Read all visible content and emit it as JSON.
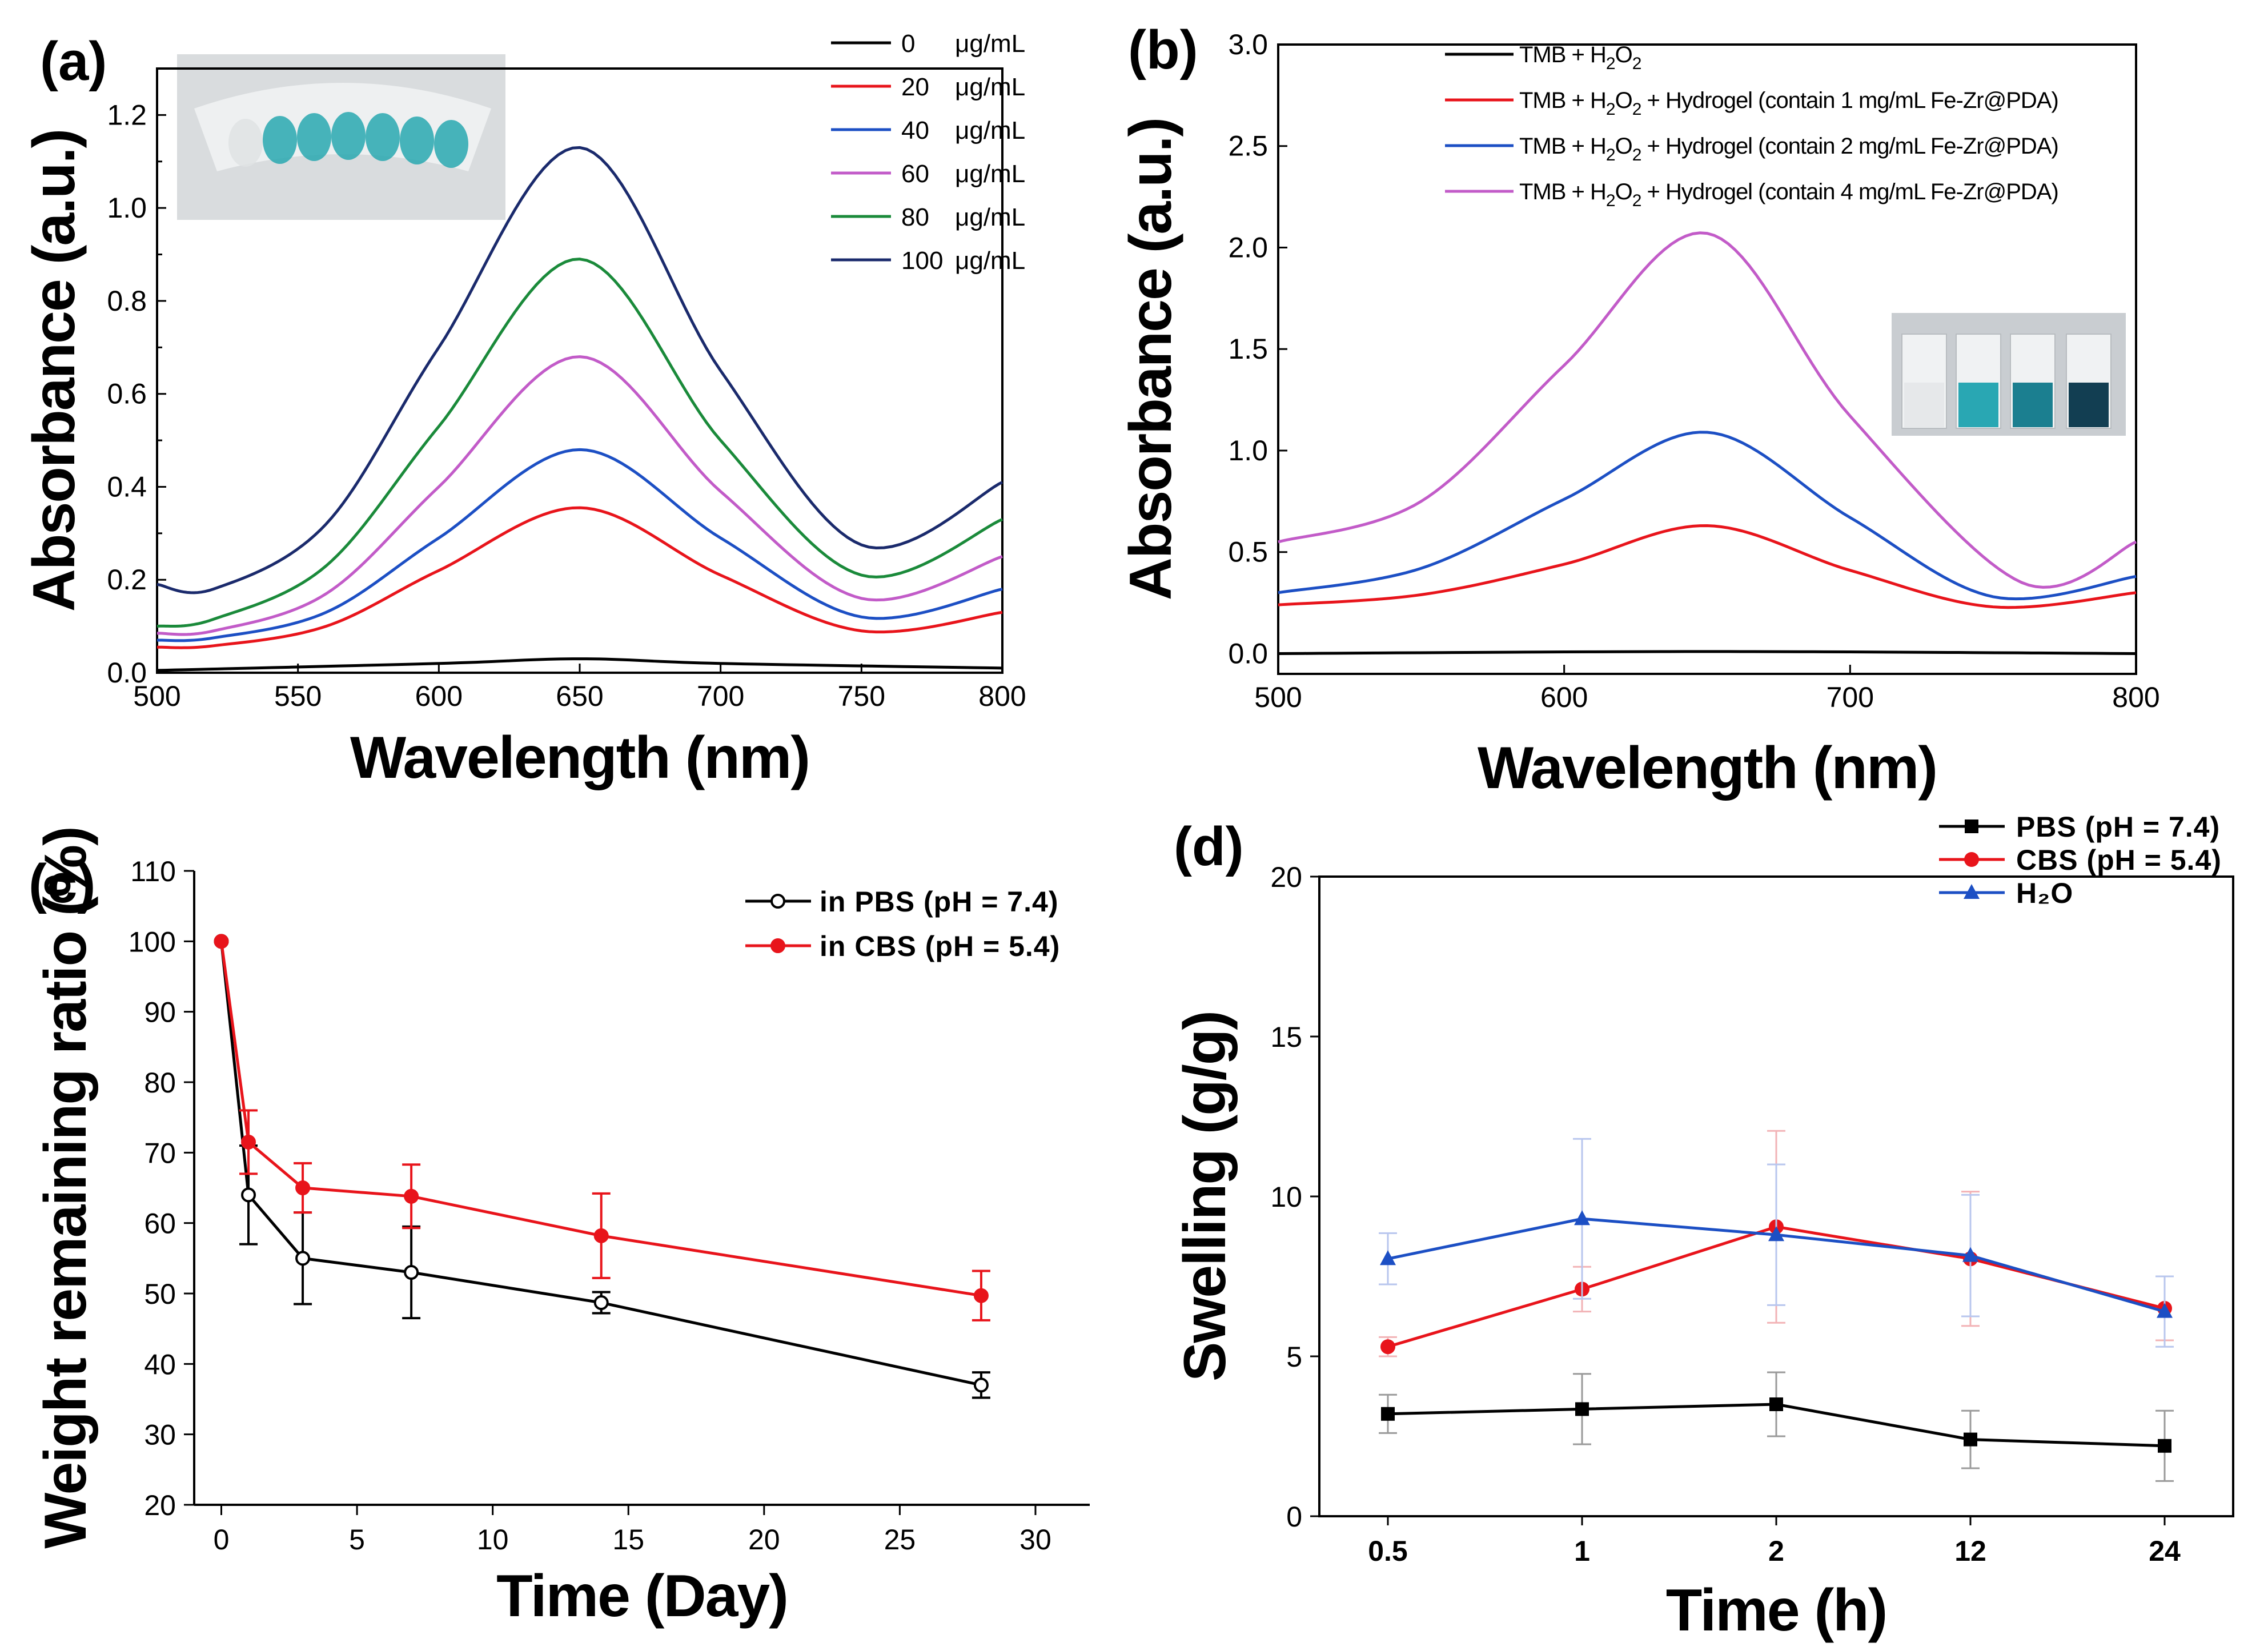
{
  "chart_data": [
    {
      "id": "a",
      "panel_label": "(a)",
      "type": "line",
      "xlabel": "Wavelength (nm)",
      "ylabel": "Absorbance (a.u.)",
      "xlim": [
        500,
        800
      ],
      "ylim": [
        0,
        1.3
      ],
      "xticks": [
        "500",
        "550",
        "600",
        "650",
        "700",
        "750",
        "800"
      ],
      "yticks": [
        "0.0",
        "0.2",
        "0.4",
        "0.6",
        "0.8",
        "1.0",
        "1.2"
      ],
      "legend_position": "top-right",
      "inset": "photo of tubes with blue solutions",
      "series": [
        {
          "name_value": "0",
          "name_unit": "μg/mL",
          "color": "#000000",
          "x": [
            500,
            600,
            650,
            700,
            800
          ],
          "y": [
            0.005,
            0.02,
            0.03,
            0.02,
            0.01
          ]
        },
        {
          "name_value": "20",
          "name_unit": "μg/mL",
          "color": "#e8141b",
          "x": [
            500,
            520,
            560,
            600,
            650,
            700,
            750,
            800
          ],
          "y": [
            0.055,
            0.058,
            0.1,
            0.22,
            0.355,
            0.21,
            0.09,
            0.13
          ]
        },
        {
          "name_value": "40",
          "name_unit": "μg/mL",
          "color": "#1c4fc4",
          "x": [
            500,
            520,
            560,
            600,
            650,
            700,
            750,
            800
          ],
          "y": [
            0.07,
            0.075,
            0.13,
            0.29,
            0.48,
            0.29,
            0.12,
            0.18
          ]
        },
        {
          "name_value": "60",
          "name_unit": "μg/mL",
          "color": "#c25bc8",
          "x": [
            500,
            520,
            560,
            600,
            650,
            700,
            750,
            800
          ],
          "y": [
            0.085,
            0.09,
            0.17,
            0.4,
            0.68,
            0.39,
            0.16,
            0.25
          ]
        },
        {
          "name_value": "80",
          "name_unit": "μg/mL",
          "color": "#1a8a3a",
          "x": [
            500,
            520,
            560,
            600,
            650,
            700,
            750,
            800
          ],
          "y": [
            0.1,
            0.115,
            0.23,
            0.53,
            0.89,
            0.5,
            0.21,
            0.33
          ]
        },
        {
          "name_value": "100",
          "name_unit": "μg/mL",
          "color": "#1a2a6c",
          "x": [
            500,
            520,
            560,
            600,
            650,
            700,
            750,
            800
          ],
          "y": [
            0.19,
            0.18,
            0.32,
            0.7,
            1.13,
            0.65,
            0.275,
            0.41
          ]
        }
      ]
    },
    {
      "id": "b",
      "panel_label": "(b)",
      "type": "line",
      "xlabel": "Wavelength (nm)",
      "ylabel": "Absorbance (a.u.)",
      "xlim": [
        500,
        800
      ],
      "ylim": [
        -0.1,
        3.0
      ],
      "xticks": [
        "500",
        "600",
        "700",
        "800"
      ],
      "yticks": [
        "0.0",
        "0.5",
        "1.0",
        "1.5",
        "2.0",
        "2.5",
        "3.0"
      ],
      "legend_position": "top",
      "inset": "photo of four cuvettes",
      "legend_prefix": "TMB + H",
      "legend_sub": "2",
      "legend_mid": "O",
      "legend_hydrogel": " + Hydrogel (contain ",
      "series": [
        {
          "name_suffix": "",
          "color": "#000000",
          "x": [
            500,
            650,
            800
          ],
          "y": [
            0.0,
            0.01,
            0.0
          ]
        },
        {
          "name_suffix": "1 mg/mL Fe-Zr@PDA)",
          "color": "#e8141b",
          "x": [
            500,
            550,
            600,
            650,
            700,
            750,
            800
          ],
          "y": [
            0.24,
            0.29,
            0.44,
            0.63,
            0.41,
            0.23,
            0.3
          ]
        },
        {
          "name_suffix": "2 mg/mL Fe-Zr@PDA)",
          "color": "#1c4fc4",
          "x": [
            500,
            550,
            600,
            650,
            700,
            750,
            800
          ],
          "y": [
            0.3,
            0.42,
            0.76,
            1.09,
            0.67,
            0.28,
            0.38
          ]
        },
        {
          "name_suffix": "4 mg/mL Fe-Zr@PDA)",
          "color": "#c25bc8",
          "x": [
            500,
            550,
            600,
            650,
            700,
            760,
            800
          ],
          "y": [
            0.55,
            0.75,
            1.42,
            2.07,
            1.17,
            0.35,
            0.55
          ]
        }
      ]
    },
    {
      "id": "c",
      "panel_label": "(c)",
      "type": "line",
      "xlabel": "Time (Day)",
      "ylabel": "Weight remaining ratio (%)",
      "xlim": [
        -1,
        32
      ],
      "ylim": [
        20,
        110
      ],
      "xticks": [
        "0",
        "5",
        "10",
        "15",
        "20",
        "25",
        "30"
      ],
      "yticks": [
        "20",
        "30",
        "40",
        "50",
        "60",
        "70",
        "80",
        "90",
        "100",
        "110"
      ],
      "legend_position": "top-right",
      "series": [
        {
          "name": "in PBS (pH = 7.4)",
          "color": "#000000",
          "marker": "open-circle",
          "x": [
            0,
            1,
            3,
            7,
            14,
            28
          ],
          "y": [
            100,
            64,
            55,
            53,
            48.7,
            37
          ],
          "err": [
            0,
            7,
            6.5,
            6.5,
            1.5,
            1.8
          ]
        },
        {
          "name": "in CBS (pH = 5.4)",
          "color": "#e8141b",
          "marker": "filled-circle",
          "x": [
            0,
            1,
            3,
            7,
            14,
            28
          ],
          "y": [
            100,
            71.5,
            65,
            63.8,
            58.2,
            49.7
          ],
          "err": [
            0,
            4.5,
            3.5,
            4.5,
            6,
            3.5
          ]
        }
      ]
    },
    {
      "id": "d",
      "panel_label": "(d)",
      "type": "line",
      "xlabel": "Time (h)",
      "ylabel": "Swelling (g/g)",
      "categories": [
        "0.5",
        "1",
        "2",
        "12",
        "24"
      ],
      "ylim": [
        0,
        20
      ],
      "yticks": [
        "0",
        "5",
        "10",
        "15",
        "20"
      ],
      "legend_position": "top-right",
      "series": [
        {
          "name": "PBS (pH = 7.4)",
          "color": "#000000",
          "marker": "square",
          "values": [
            3.2,
            3.35,
            3.5,
            2.4,
            2.2
          ],
          "err": [
            0.6,
            1.1,
            1.0,
            0.9,
            1.1
          ]
        },
        {
          "name": "CBS (pH = 5.4)",
          "color": "#e8141b",
          "marker": "circle",
          "values": [
            5.3,
            7.1,
            9.05,
            8.05,
            6.5
          ],
          "err": [
            0.3,
            0.7,
            3.0,
            2.1,
            1.0
          ]
        },
        {
          "name": "H₂O",
          "color": "#1c4fc4",
          "marker": "triangle",
          "values": [
            8.05,
            9.3,
            8.8,
            8.15,
            6.4
          ],
          "err": [
            0.8,
            2.5,
            2.2,
            1.9,
            1.1
          ]
        }
      ]
    }
  ]
}
